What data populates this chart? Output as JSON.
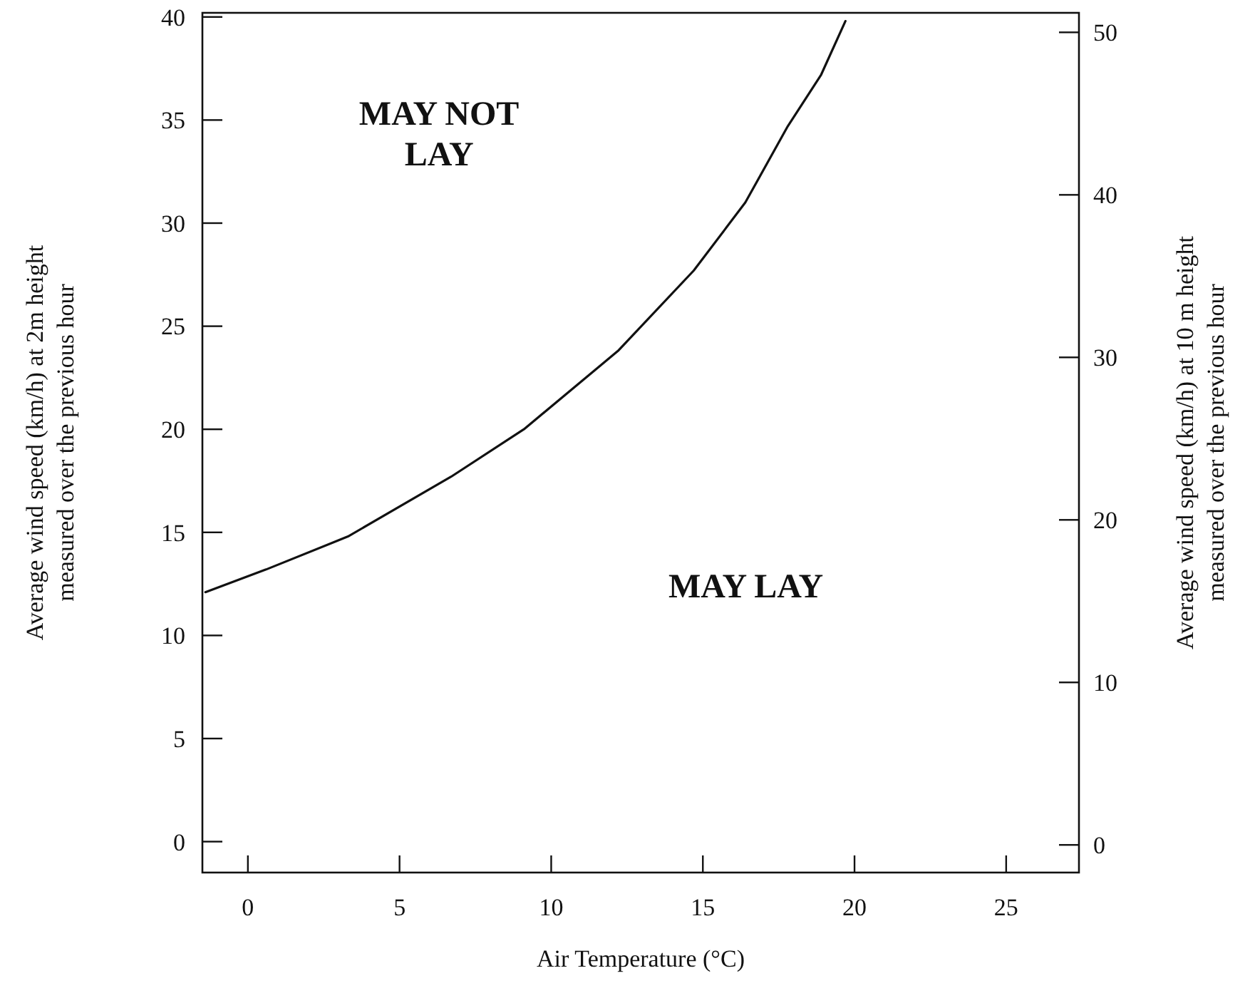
{
  "chart_data": {
    "type": "line",
    "xlabel": "Air Temperature (°C)",
    "ylabel": "Average wind speed (km/h) at 2m height measured over the previous hour",
    "y2label": "Average wind speed (km/h) at 10 m height measured over the previous hour",
    "x": [
      -1.4,
      0.6,
      3.3,
      6.7,
      9.1,
      12.2,
      14.7,
      16.4,
      17.8,
      18.9,
      19.7
    ],
    "series": [
      {
        "color": "#111111",
        "values": [
          12.1,
          13.2,
          14.8,
          17.7,
          20.0,
          23.8,
          27.7,
          31.0,
          34.7,
          37.2,
          39.8
        ]
      }
    ],
    "xlim": [
      -1.5,
      27.4
    ],
    "xticks": [
      0,
      5,
      10,
      15,
      20,
      25
    ],
    "ylim": [
      -1.5,
      40.2
    ],
    "yticks": [
      0,
      5,
      10,
      15,
      20,
      25,
      30,
      35,
      40
    ],
    "y2lim": [
      -1.7,
      51.2
    ],
    "y2ticks": [
      0,
      10,
      20,
      30,
      40,
      50
    ],
    "annotations": [
      "MAY NOT LAY",
      "MAY LAY"
    ],
    "line_style": "solid"
  }
}
